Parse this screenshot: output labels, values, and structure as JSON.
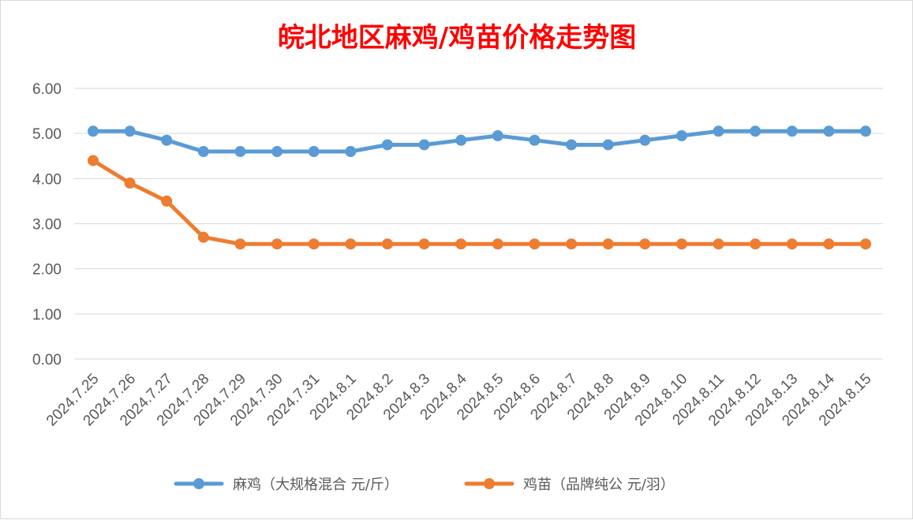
{
  "chart_data": {
    "type": "line",
    "title": "皖北地区麻鸡/鸡苗价格走势图",
    "title_color": "#ff0000",
    "categories": [
      "2024.7.25",
      "2024.7.26",
      "2024.7.27",
      "2024.7.28",
      "2024.7.29",
      "2024.7.30",
      "2024.7.31",
      "2024.8.1",
      "2024.8.2",
      "2024.8.3",
      "2024.8.4",
      "2024.8.5",
      "2024.8.6",
      "2024.8.7",
      "2024.8.8",
      "2024.8.9",
      "2024.8.10",
      "2024.8.11",
      "2024.8.12",
      "2024.8.13",
      "2024.8.14",
      "2024.8.15"
    ],
    "y_ticks": [
      "0.00",
      "1.00",
      "2.00",
      "3.00",
      "4.00",
      "5.00",
      "6.00"
    ],
    "ylim": [
      0,
      6
    ],
    "grid": true,
    "legend_position": "bottom",
    "series": [
      {
        "name": "麻鸡（大规格混合 元/斤）",
        "color": "#5b9bd5",
        "values": [
          5.05,
          5.05,
          4.85,
          4.6,
          4.6,
          4.6,
          4.6,
          4.6,
          4.75,
          4.75,
          4.85,
          4.95,
          4.85,
          4.75,
          4.75,
          4.85,
          4.95,
          5.05,
          5.05,
          5.05,
          5.05,
          5.05
        ]
      },
      {
        "name": "鸡苗（品牌纯公 元/羽）",
        "color": "#ed7d31",
        "values": [
          4.4,
          3.9,
          3.5,
          2.7,
          2.55,
          2.55,
          2.55,
          2.55,
          2.55,
          2.55,
          2.55,
          2.55,
          2.55,
          2.55,
          2.55,
          2.55,
          2.55,
          2.55,
          2.55,
          2.55,
          2.55,
          2.55
        ]
      }
    ]
  }
}
